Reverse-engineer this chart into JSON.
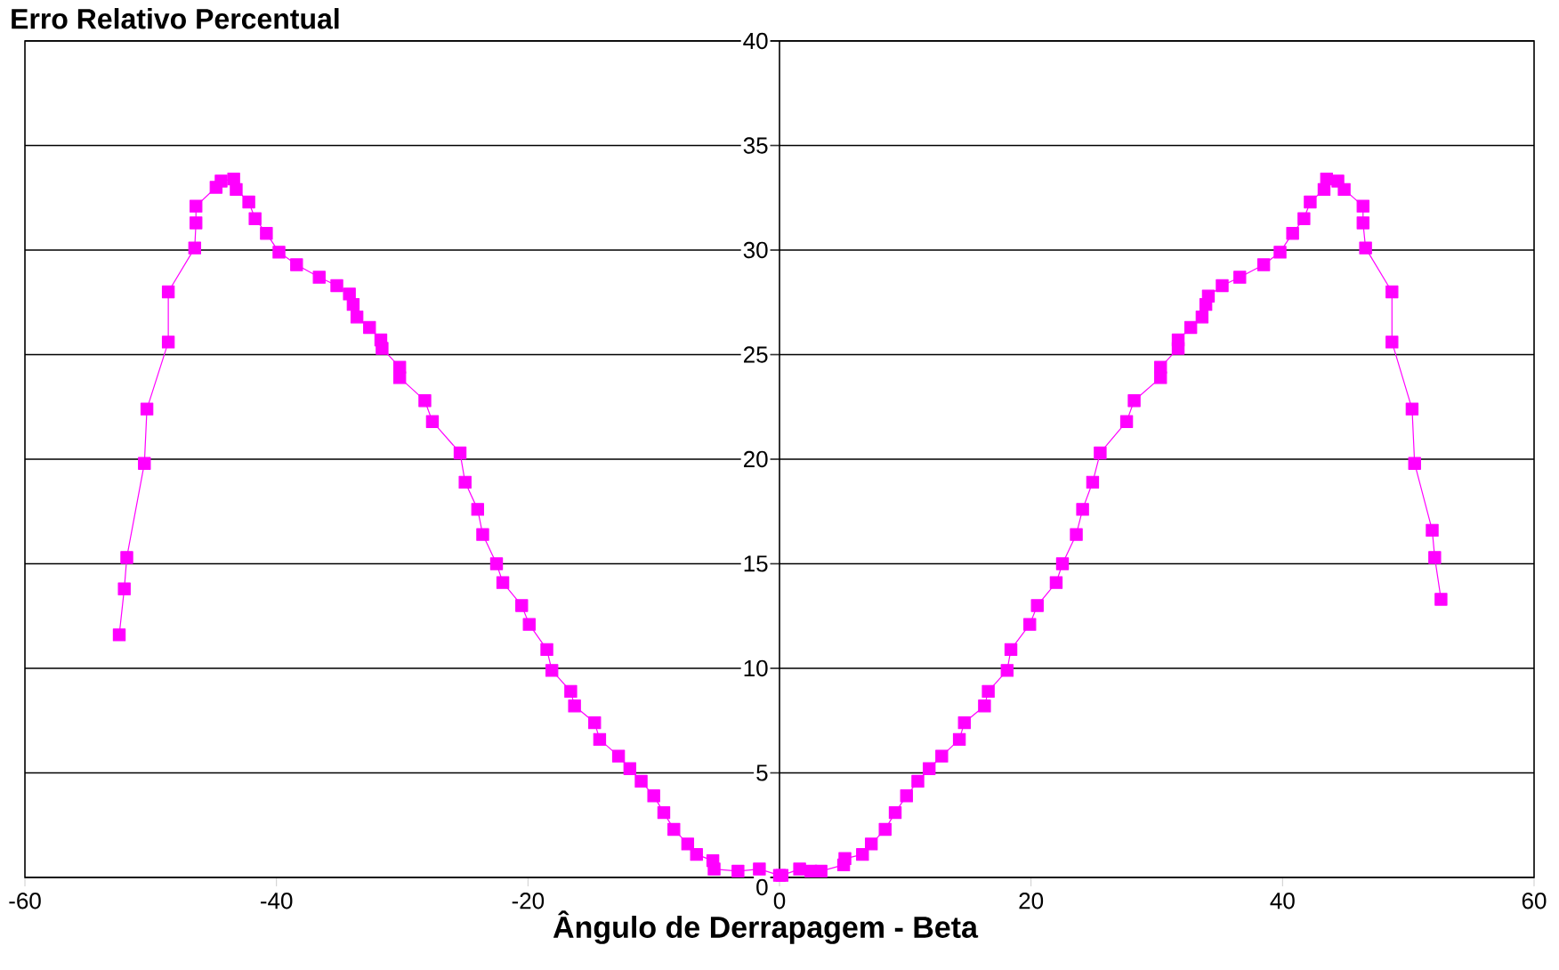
{
  "chart_data": {
    "type": "line",
    "title": "Erro Relativo Percentual",
    "xlabel": "Ângulo de Derrapagem - Beta",
    "xlim": [
      -60,
      60
    ],
    "ylim": [
      0,
      40
    ],
    "xticks": [
      -60,
      -40,
      -20,
      0,
      20,
      40,
      60
    ],
    "yticks": [
      0,
      5,
      10,
      15,
      20,
      25,
      30,
      35,
      40
    ],
    "grid": "y",
    "marker": "square",
    "line_style": "solid",
    "series": [
      {
        "color": "#ff00ff",
        "x": [
          -52.5,
          -52.1,
          -51.9,
          -50.5,
          -50.3,
          -48.6,
          -48.6,
          -46.5,
          -46.4,
          -46.4,
          -44.8,
          -44.4,
          -43.4,
          -43.2,
          -42.2,
          -41.7,
          -40.8,
          -39.8,
          -38.4,
          -36.6,
          -35.2,
          -34.2,
          -33.9,
          -33.6,
          -32.6,
          -31.7,
          -31.6,
          -30.2,
          -30.2,
          -28.2,
          -27.6,
          -25.4,
          -25.0,
          -24.0,
          -23.6,
          -22.5,
          -22.0,
          -20.5,
          -19.9,
          -18.5,
          -18.1,
          -16.6,
          -16.3,
          -14.7,
          -14.3,
          -12.8,
          -11.9,
          -11.0,
          -10.0,
          -9.2,
          -8.4,
          -7.3,
          -6.6,
          -5.3,
          -5.2,
          -3.3,
          -1.6,
          0,
          0.2,
          1.6,
          2.5,
          3.3,
          5.1,
          5.2,
          6.6,
          7.3,
          8.4,
          9.2,
          10.1,
          11.0,
          11.9,
          12.9,
          14.3,
          14.7,
          16.3,
          16.6,
          18.1,
          18.4,
          19.9,
          20.5,
          22.0,
          22.5,
          23.6,
          24.1,
          24.9,
          25.5,
          27.6,
          28.2,
          30.3,
          30.3,
          31.7,
          31.7,
          32.7,
          33.6,
          33.9,
          34.1,
          35.2,
          36.6,
          38.5,
          39.8,
          40.8,
          41.7,
          42.2,
          43.3,
          43.5,
          44.4,
          44.9,
          46.4,
          46.4,
          46.6,
          48.7,
          48.7,
          50.3,
          50.5,
          51.9,
          52.1,
          52.6
        ],
        "values": [
          11.6,
          13.8,
          15.3,
          19.8,
          22.4,
          25.6,
          28.0,
          30.1,
          31.3,
          32.1,
          33.0,
          33.3,
          33.4,
          32.9,
          32.3,
          31.5,
          30.8,
          29.9,
          29.3,
          28.7,
          28.3,
          27.9,
          27.4,
          26.8,
          26.3,
          25.7,
          25.3,
          24.4,
          23.9,
          22.8,
          21.8,
          20.3,
          18.9,
          17.6,
          16.4,
          15.0,
          14.1,
          13.0,
          12.1,
          10.9,
          9.9,
          8.9,
          8.2,
          7.4,
          6.6,
          5.8,
          5.2,
          4.6,
          3.9,
          3.1,
          2.3,
          1.6,
          1.1,
          0.8,
          0.4,
          0.3,
          0.4,
          0.1,
          0.1,
          0.4,
          0.3,
          0.3,
          0.6,
          0.9,
          1.1,
          1.6,
          2.3,
          3.1,
          3.9,
          4.6,
          5.2,
          5.8,
          6.6,
          7.4,
          8.2,
          8.9,
          9.9,
          10.9,
          12.1,
          13.0,
          14.1,
          15.0,
          16.4,
          17.6,
          18.9,
          20.3,
          21.8,
          22.8,
          23.9,
          24.4,
          25.3,
          25.7,
          26.3,
          26.8,
          27.4,
          27.8,
          28.3,
          28.7,
          29.3,
          29.9,
          30.8,
          31.5,
          32.3,
          32.9,
          33.4,
          33.3,
          32.9,
          32.1,
          31.3,
          30.1,
          28.0,
          25.6,
          22.4,
          19.8,
          16.6,
          15.3,
          13.3
        ]
      }
    ]
  }
}
